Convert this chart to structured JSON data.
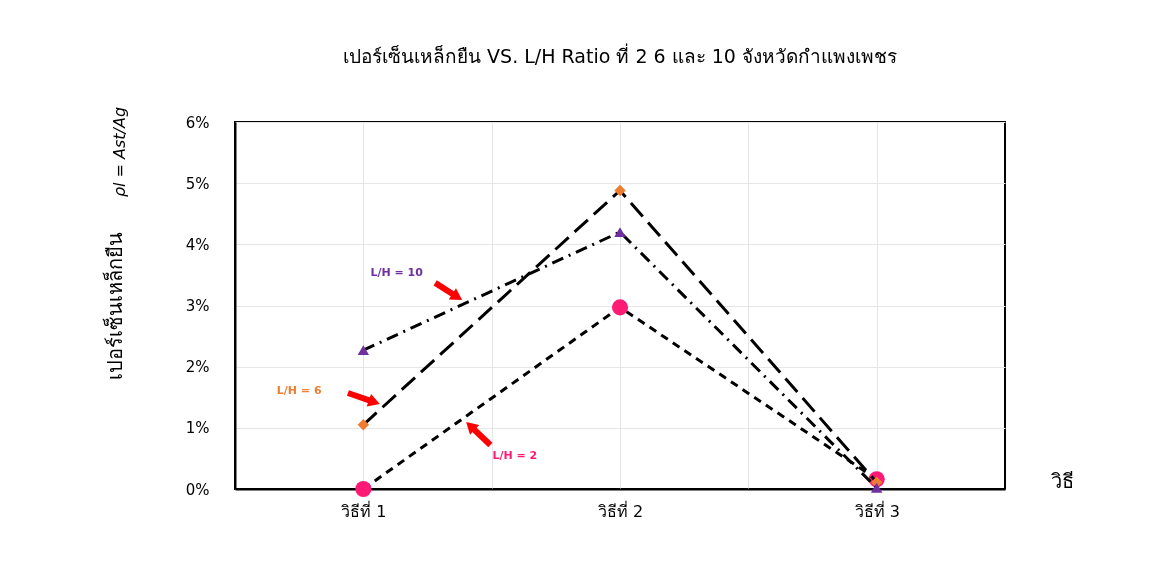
{
  "chart_data": {
    "type": "line",
    "title": "เปอร์เซ็นเหล็กยืน VS. L/H Ratio ที่ 2 6 และ 10  จังหวัดกำแพงเพชร",
    "xlabel": "วิธี",
    "ylabel": "เปอร์เซ็นเหล็กยืน",
    "annotations": [
      "ρl = Ast/Ag"
    ],
    "x": [
      1,
      2,
      3
    ],
    "xlim": [
      0.5,
      3.5
    ],
    "xticks": [
      {
        "value": 1,
        "label": "วิธีที่ 1"
      },
      {
        "value": 1.5,
        "label": null
      },
      {
        "value": 2,
        "label": "วิธีที่ 2"
      },
      {
        "value": 2.5,
        "label": null
      },
      {
        "value": 3,
        "label": "วิธีที่ 3"
      }
    ],
    "ylim": [
      0,
      6
    ],
    "yticks": [
      {
        "value": 0,
        "label": "0%"
      },
      {
        "value": 1,
        "label": "1%"
      },
      {
        "value": 2,
        "label": "2%"
      },
      {
        "value": 3,
        "label": "3%"
      },
      {
        "value": 4,
        "label": "4%"
      },
      {
        "value": 5,
        "label": "5%"
      },
      {
        "value": 6,
        "label": "6%"
      }
    ],
    "grid": true,
    "series": [
      {
        "name": "L/H = 2",
        "color": "#ff1a75",
        "marker": "circle",
        "line_style": "dashed",
        "values": [
          0,
          2.97,
          0.16
        ]
      },
      {
        "name": "L/H = 6",
        "color": "#ed7d31",
        "marker": "diamond",
        "line_style": "dashed",
        "values": [
          1.05,
          4.88,
          0.11
        ]
      },
      {
        "name": "L/H = 10",
        "color": "#7030a0",
        "marker": "triangle",
        "line_style": "dashed",
        "values": [
          2.27,
          4.2,
          0.02
        ]
      }
    ]
  }
}
